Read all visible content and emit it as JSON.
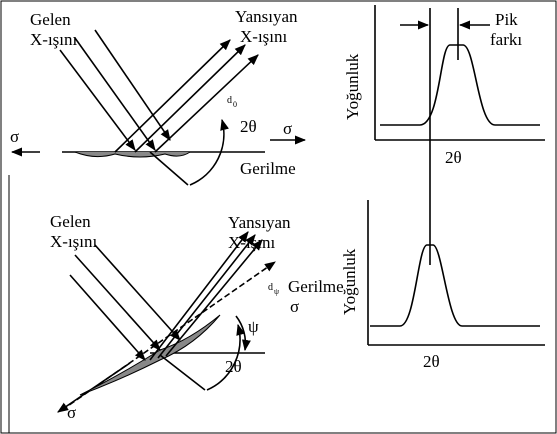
{
  "top": {
    "incident": [
      "Gelen",
      "X-ışını"
    ],
    "reflected": [
      "Yansıyan",
      "X-ışını"
    ],
    "spacing": {
      "base": "d",
      "sub": "0"
    },
    "stress_left": "σ",
    "stress_right": "σ",
    "angle": "2θ",
    "stress_label": "Gerilme",
    "y_axis": "Yoğunluk",
    "x_axis": "2θ",
    "peak_shift": [
      "Pik",
      "farkı"
    ]
  },
  "bottom": {
    "incident": [
      "Gelen",
      "X-ışını"
    ],
    "reflected": [
      "Yansıyan",
      "X-ışını"
    ],
    "spacing": {
      "base": "d",
      "sub": "ψ"
    },
    "stress_label": "Gerilme",
    "stress_upper": "σ",
    "stress_lower": "σ",
    "tilt": "ψ",
    "angle": "2θ",
    "y_axis": "Yoğunluk",
    "x_axis": "2θ"
  }
}
